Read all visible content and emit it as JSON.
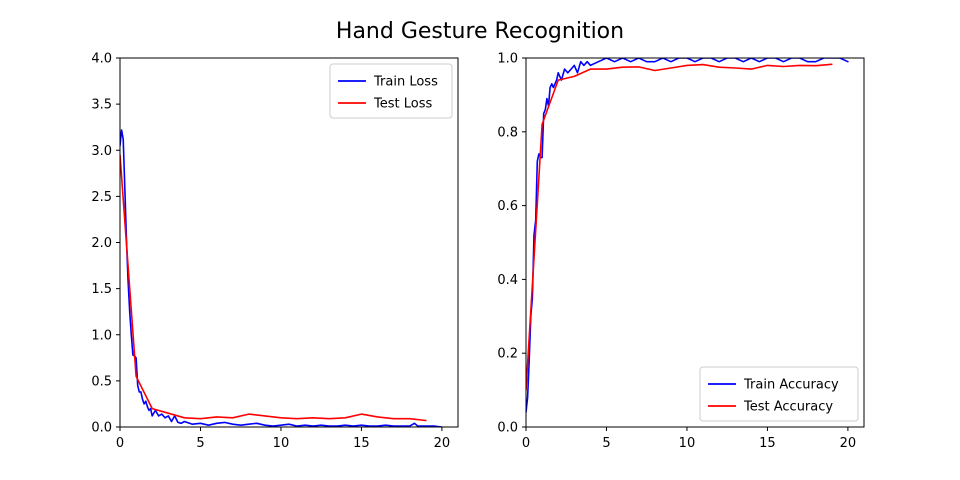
{
  "figure": {
    "title": "Hand Gesture Recognition"
  },
  "chart_data": [
    {
      "type": "line",
      "title": "",
      "xlabel": "",
      "ylabel": "",
      "xlim": [
        0,
        21
      ],
      "ylim": [
        0,
        4.0
      ],
      "xticks": [
        0,
        5,
        10,
        15,
        20
      ],
      "yticks": [
        0,
        0.5,
        1.0,
        1.5,
        2.0,
        2.5,
        3.0,
        3.5,
        4.0
      ],
      "ytick_labels": [
        "0.0",
        "0.5",
        "1.0",
        "1.5",
        "2.0",
        "2.5",
        "3.0",
        "3.5",
        "4.0"
      ],
      "grid": false,
      "legend_position": "top-right",
      "series": [
        {
          "name": "Train Loss",
          "color": "#0000ff",
          "x": [
            0,
            0.1,
            0.2,
            0.3,
            0.4,
            0.5,
            0.6,
            0.7,
            0.8,
            0.9,
            1.0,
            1.1,
            1.2,
            1.3,
            1.4,
            1.5,
            1.6,
            1.7,
            1.8,
            1.9,
            2.0,
            2.2,
            2.4,
            2.6,
            2.8,
            3.0,
            3.2,
            3.4,
            3.6,
            3.8,
            4.0,
            4.5,
            5.0,
            5.5,
            6.0,
            6.5,
            7.0,
            7.5,
            8.0,
            8.5,
            9.0,
            9.5,
            10.0,
            10.5,
            11.0,
            11.5,
            12.0,
            12.5,
            13.0,
            13.5,
            14.0,
            14.5,
            15.0,
            15.5,
            16.0,
            16.5,
            17.0,
            17.5,
            18.0,
            18.3,
            18.5,
            19.0,
            19.5,
            20.0
          ],
          "y": [
            3.05,
            3.22,
            3.12,
            2.6,
            2.05,
            1.6,
            1.25,
            1.0,
            0.78,
            0.77,
            0.75,
            0.45,
            0.38,
            0.38,
            0.3,
            0.25,
            0.28,
            0.22,
            0.18,
            0.2,
            0.12,
            0.18,
            0.12,
            0.14,
            0.1,
            0.12,
            0.06,
            0.12,
            0.05,
            0.04,
            0.06,
            0.03,
            0.04,
            0.02,
            0.04,
            0.05,
            0.03,
            0.02,
            0.03,
            0.04,
            0.02,
            0.01,
            0.02,
            0.03,
            0.01,
            0.02,
            0.01,
            0.02,
            0.01,
            0.01,
            0.02,
            0.01,
            0.02,
            0.01,
            0.01,
            0.02,
            0.01,
            0.01,
            0.01,
            0.04,
            0.01,
            0.01,
            0.01,
            0.0
          ]
        },
        {
          "name": "Test Loss",
          "color": "#ff0000",
          "x": [
            0,
            1,
            2,
            3,
            4,
            5,
            6,
            7,
            8,
            9,
            10,
            11,
            12,
            13,
            14,
            15,
            16,
            17,
            18,
            19
          ],
          "y": [
            2.95,
            0.55,
            0.2,
            0.15,
            0.1,
            0.09,
            0.11,
            0.1,
            0.14,
            0.12,
            0.1,
            0.09,
            0.1,
            0.09,
            0.1,
            0.14,
            0.11,
            0.09,
            0.09,
            0.07
          ]
        }
      ]
    },
    {
      "type": "line",
      "title": "",
      "xlabel": "",
      "ylabel": "",
      "xlim": [
        0,
        21
      ],
      "ylim": [
        0,
        1.0
      ],
      "xticks": [
        0,
        5,
        10,
        15,
        20
      ],
      "yticks": [
        0,
        0.2,
        0.4,
        0.6,
        0.8,
        1.0
      ],
      "ytick_labels": [
        "0.0",
        "0.2",
        "0.4",
        "0.6",
        "0.8",
        "1.0"
      ],
      "grid": false,
      "legend_position": "bottom-right",
      "series": [
        {
          "name": "Train Accuracy",
          "color": "#0000ff",
          "x": [
            0,
            0.1,
            0.2,
            0.3,
            0.4,
            0.5,
            0.6,
            0.7,
            0.8,
            0.9,
            1.0,
            1.1,
            1.2,
            1.3,
            1.4,
            1.5,
            1.6,
            1.7,
            1.8,
            1.9,
            2.0,
            2.2,
            2.4,
            2.6,
            2.8,
            3.0,
            3.2,
            3.4,
            3.6,
            3.8,
            4.0,
            4.5,
            5.0,
            5.5,
            6.0,
            6.5,
            7.0,
            7.5,
            8.0,
            8.5,
            9.0,
            9.5,
            10.0,
            10.5,
            11.0,
            11.5,
            12.0,
            12.5,
            13.0,
            13.5,
            14.0,
            14.5,
            15.0,
            15.5,
            16.0,
            16.5,
            17.0,
            17.5,
            18.0,
            18.5,
            19.0,
            19.5,
            20.0
          ],
          "y": [
            0.04,
            0.08,
            0.18,
            0.3,
            0.35,
            0.52,
            0.56,
            0.72,
            0.74,
            0.73,
            0.73,
            0.85,
            0.86,
            0.89,
            0.87,
            0.92,
            0.93,
            0.92,
            0.93,
            0.94,
            0.96,
            0.94,
            0.97,
            0.96,
            0.97,
            0.98,
            0.96,
            0.99,
            0.98,
            0.99,
            0.98,
            0.99,
            1.0,
            0.99,
            1.0,
            0.99,
            1.0,
            0.99,
            0.99,
            1.0,
            0.99,
            1.0,
            1.0,
            0.99,
            1.0,
            1.0,
            0.99,
            1.0,
            1.0,
            0.99,
            1.0,
            0.99,
            1.0,
            1.0,
            0.99,
            1.0,
            1.0,
            0.99,
            0.99,
            1.0,
            1.0,
            1.0,
            0.99
          ]
        },
        {
          "name": "Test Accuracy",
          "color": "#ff0000",
          "x": [
            0,
            1,
            2,
            3,
            4,
            5,
            6,
            7,
            8,
            9,
            10,
            11,
            12,
            13,
            14,
            15,
            16,
            17,
            18,
            19
          ],
          "y": [
            0.1,
            0.82,
            0.94,
            0.95,
            0.97,
            0.97,
            0.975,
            0.976,
            0.966,
            0.973,
            0.98,
            0.982,
            0.975,
            0.973,
            0.97,
            0.98,
            0.977,
            0.98,
            0.979,
            0.983
          ]
        }
      ]
    }
  ]
}
